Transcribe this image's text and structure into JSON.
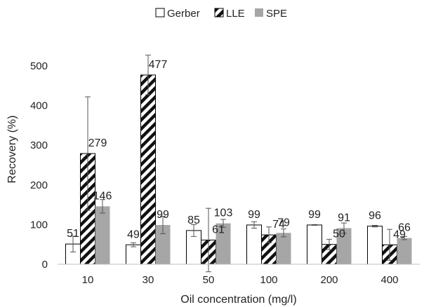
{
  "chart_data": {
    "type": "bar",
    "title": "",
    "xlabel": "Oil concentration (mg/l)",
    "ylabel": "Recovery (%)",
    "categories": [
      "10",
      "30",
      "50",
      "100",
      "200",
      "400"
    ],
    "ylim": [
      0,
      560
    ],
    "yticks": [
      0,
      100,
      200,
      300,
      400,
      500
    ],
    "grid": false,
    "legend_position": "top-center",
    "series": [
      {
        "name": "Gerber",
        "values": [
          51,
          49,
          85,
          99,
          99,
          96
        ],
        "errors": [
          20,
          5,
          15,
          8,
          1,
          2
        ],
        "pattern": "white-outline",
        "color": "#ffffff",
        "stroke": "#000000"
      },
      {
        "name": "LLE",
        "values": [
          279,
          477,
          61,
          74,
          50,
          49
        ],
        "errors": [
          143,
          50,
          80,
          20,
          13,
          39
        ],
        "pattern": "diagonal-hatch",
        "color": "#ffffff",
        "stroke": "#000000"
      },
      {
        "name": "SPE",
        "values": [
          146,
          99,
          103,
          79,
          91,
          66
        ],
        "errors": [
          17,
          22,
          10,
          10,
          13,
          4
        ],
        "pattern": "solid",
        "color": "#a6a6a6"
      }
    ],
    "data_labels": true
  }
}
